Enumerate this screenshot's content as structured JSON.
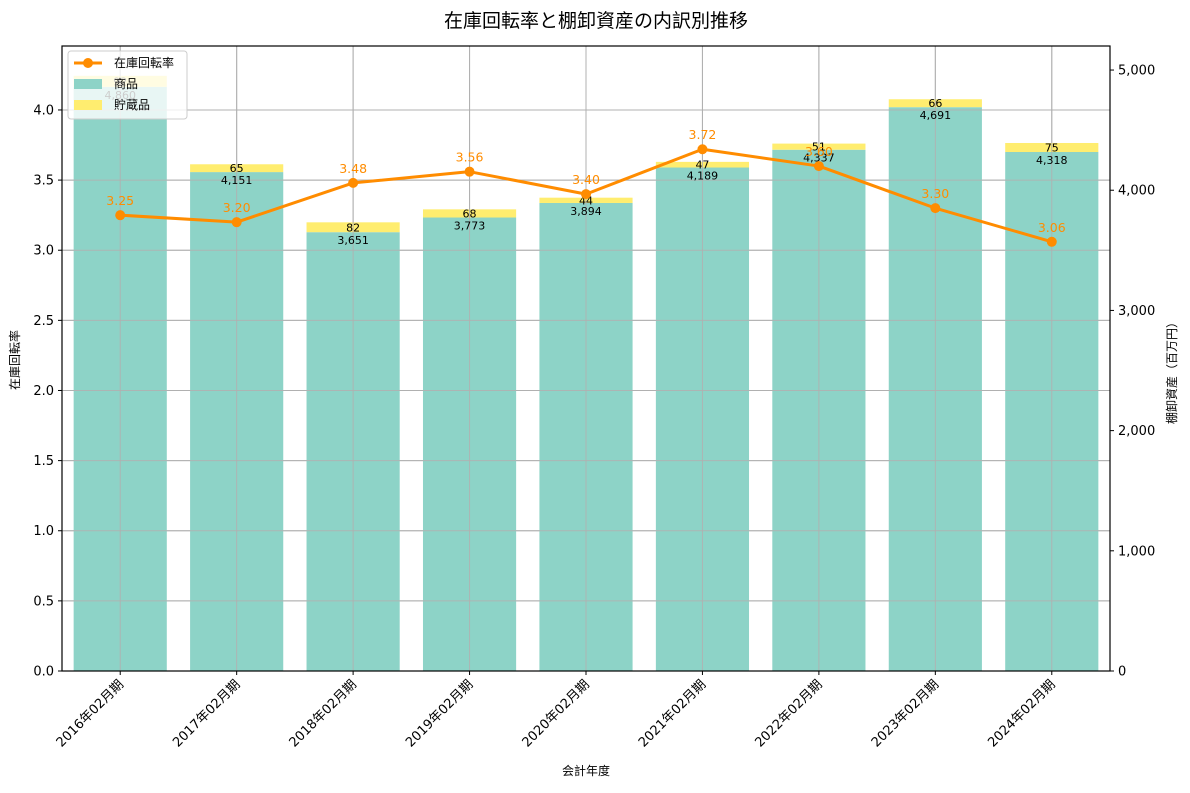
{
  "chart_data": {
    "type": "bar",
    "title": "在庫回転率と棚卸資産の内訳別推移",
    "xlabel": "会計年度",
    "ylabel": "在庫回転率",
    "y2label": "棚卸資産（百万円）",
    "categories": [
      "2016年02月期",
      "2017年02月期",
      "2018年02月期",
      "2019年02月期",
      "2020年02月期",
      "2021年02月期",
      "2022年02月期",
      "2023年02月期",
      "2024年02月期"
    ],
    "series": [
      {
        "name": "商品",
        "type": "bar",
        "axis": "right",
        "stack": "inventory",
        "color": "#8dd3c7",
        "values": [
          4860,
          4151,
          3651,
          3773,
          3894,
          4189,
          4337,
          4691,
          4318
        ],
        "labels": [
          "4,860",
          "4,151",
          "3,651",
          "3,773",
          "3,894",
          "4,189",
          "4,337",
          "4,691",
          "4,318"
        ]
      },
      {
        "name": "貯蔵品",
        "type": "bar",
        "axis": "right",
        "stack": "inventory",
        "color": "#ffed6f",
        "values": [
          92,
          65,
          82,
          68,
          44,
          47,
          51,
          66,
          75
        ],
        "labels": [
          "92",
          "65",
          "82",
          "68",
          "44",
          "47",
          "51",
          "66",
          "75"
        ]
      },
      {
        "name": "在庫回転率",
        "type": "line",
        "axis": "left",
        "color": "#ff8c00",
        "values": [
          3.25,
          3.2,
          3.48,
          3.56,
          3.4,
          3.72,
          3.6,
          3.3,
          3.06
        ],
        "labels": [
          "3.25",
          "3.20",
          "3.48",
          "3.56",
          "3.40",
          "3.72",
          "3.60",
          "3.30",
          "3.06"
        ]
      }
    ],
    "ylim": [
      0,
      4.456
    ],
    "y2lim": [
      0,
      5200
    ],
    "yticks": [
      "0.0",
      "0.5",
      "1.0",
      "1.5",
      "2.0",
      "2.5",
      "3.0",
      "3.5",
      "4.0"
    ],
    "y2ticks": [
      "0",
      "1,000",
      "2,000",
      "3,000",
      "4,000",
      "5,000"
    ],
    "grid": true,
    "legend_position": "upper left",
    "legend": [
      "在庫回転率",
      "商品",
      "貯蔵品"
    ]
  }
}
